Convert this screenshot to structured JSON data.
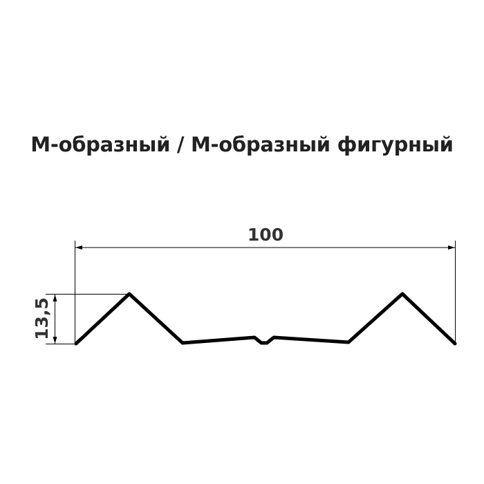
{
  "title": "М-образный / М-образный фигурный",
  "dimensions": {
    "width": "100",
    "height": "13,5"
  },
  "colors": {
    "profile": "#000000",
    "text": "#222222"
  }
}
